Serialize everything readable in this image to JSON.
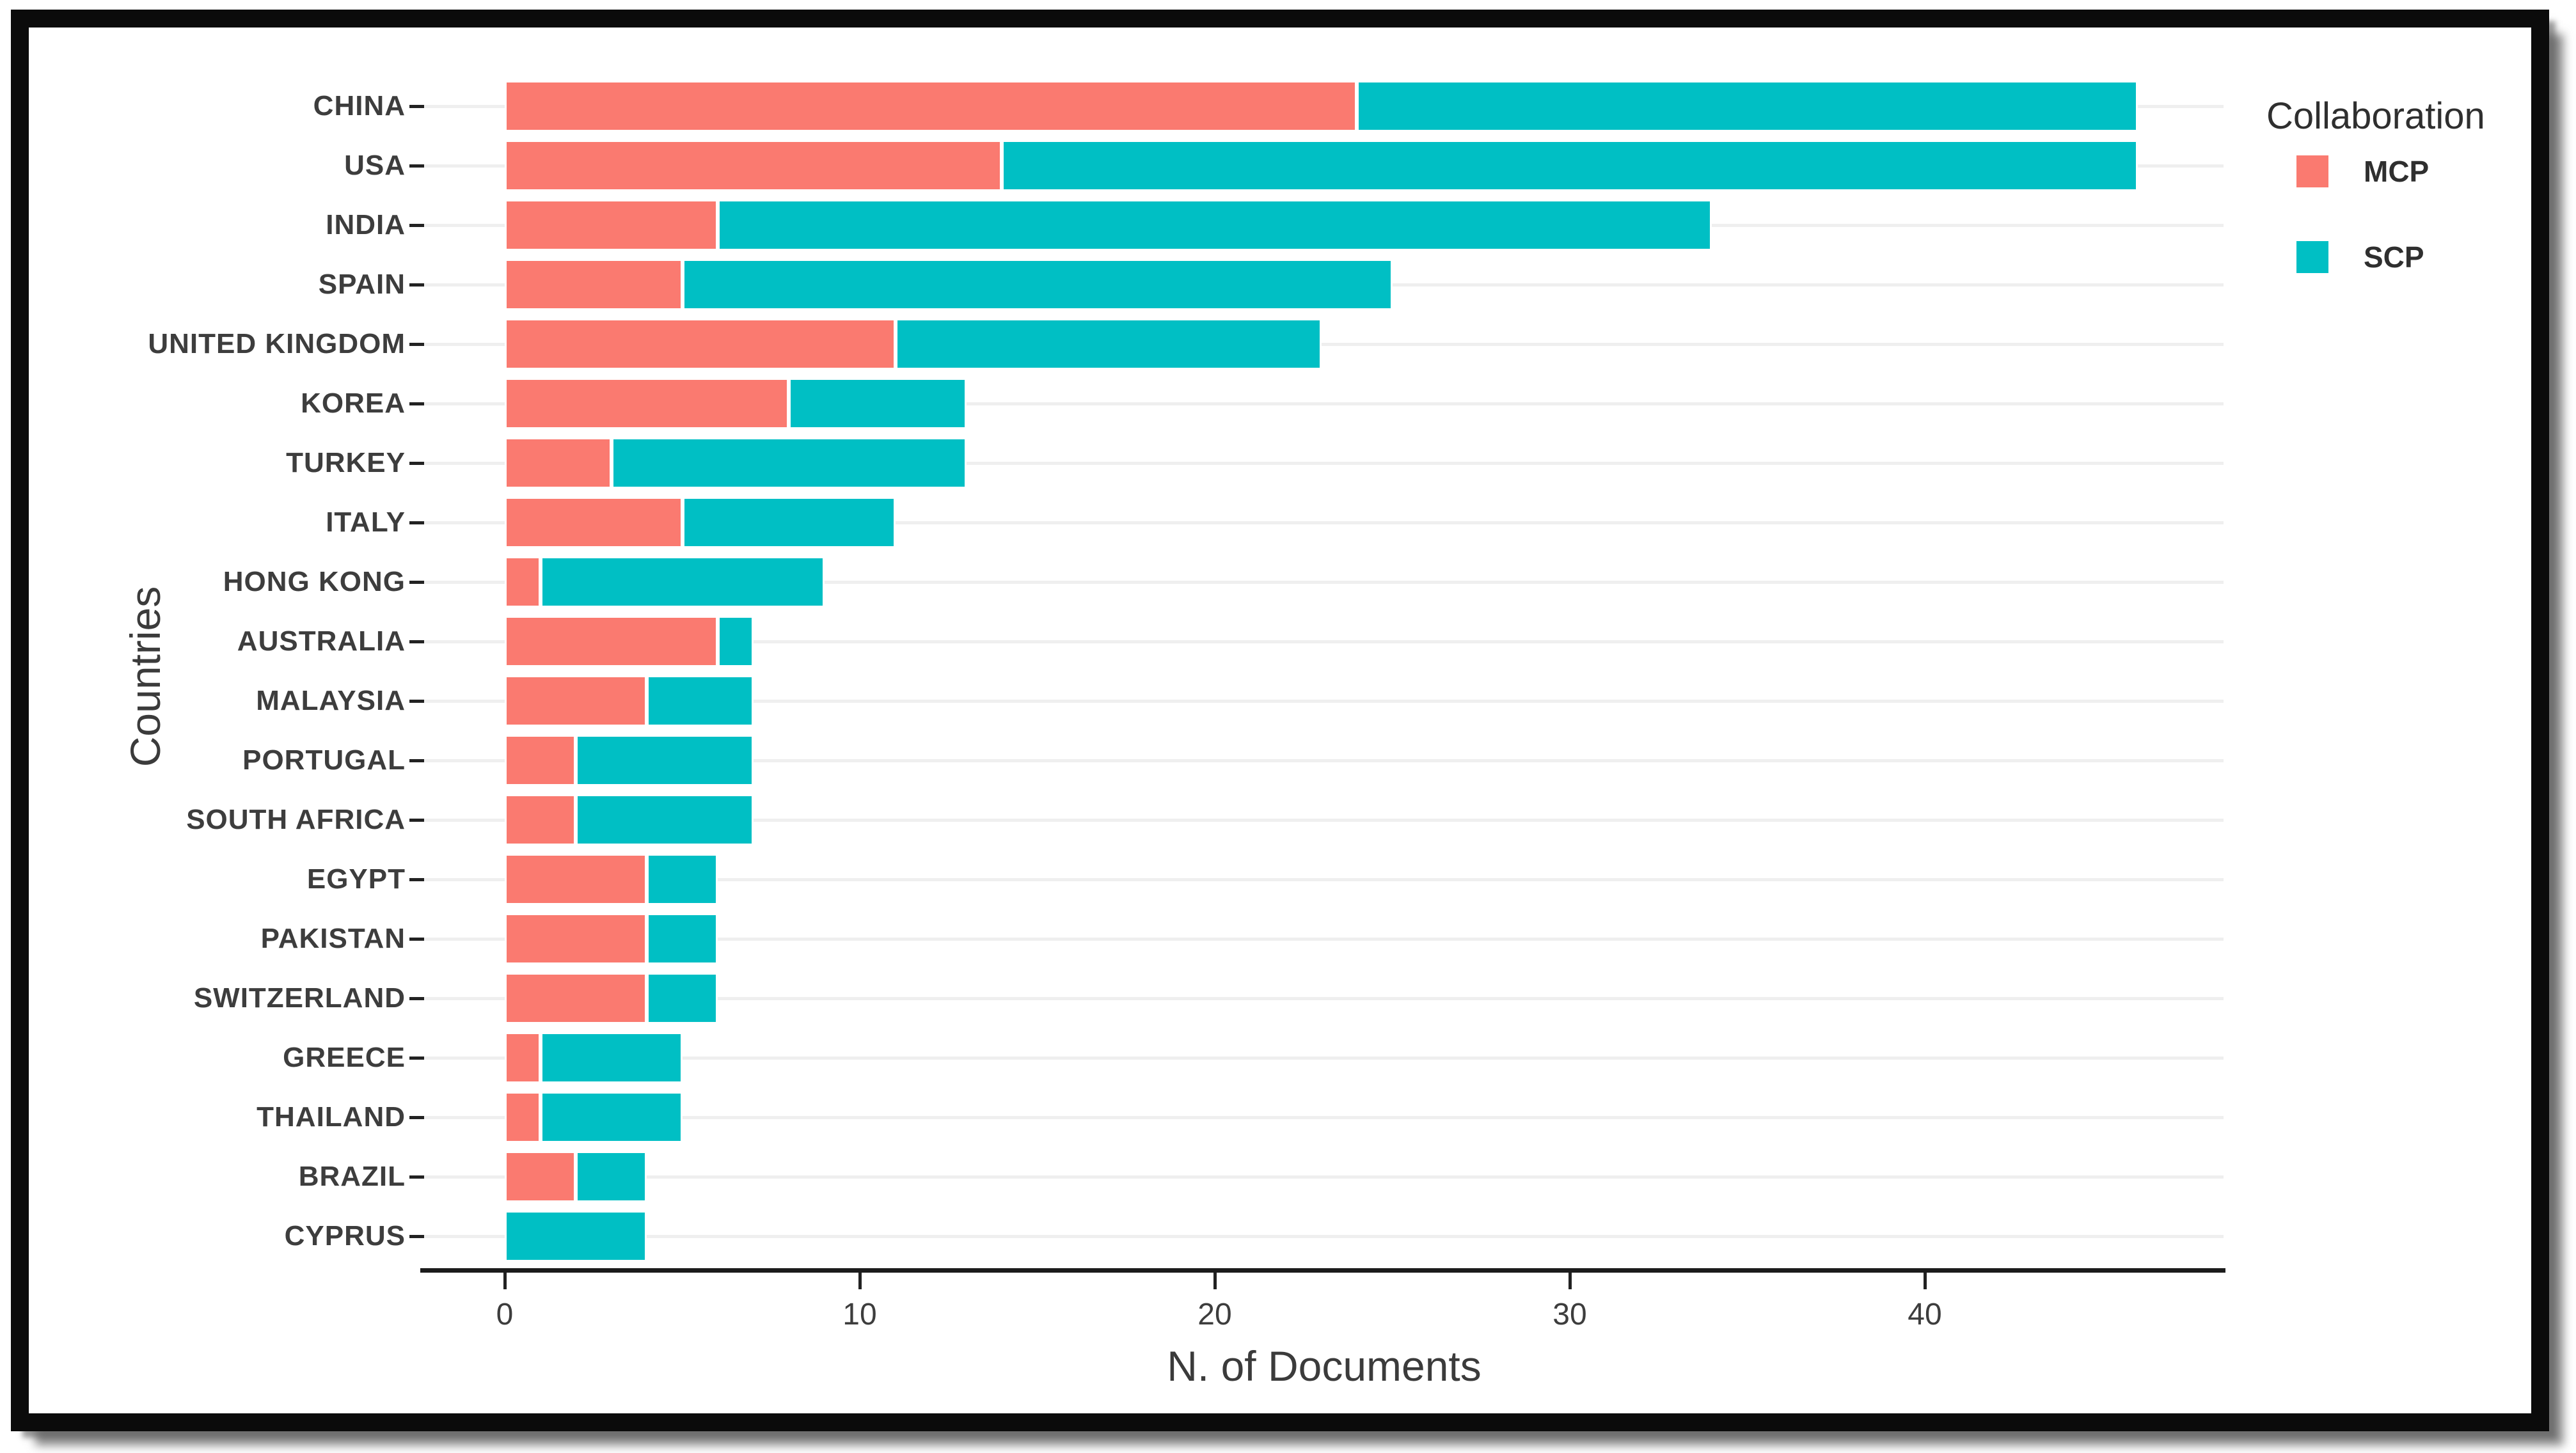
{
  "chart_data": {
    "type": "bar",
    "orientation": "horizontal",
    "stacked": true,
    "xlabel": "N. of Documents",
    "ylabel": "Countries",
    "categories": [
      "CHINA",
      "USA",
      "INDIA",
      "SPAIN",
      "UNITED KINGDOM",
      "KOREA",
      "TURKEY",
      "ITALY",
      "HONG KONG",
      "AUSTRALIA",
      "MALAYSIA",
      "PORTUGAL",
      "SOUTH AFRICA",
      "EGYPT",
      "PAKISTAN",
      "SWITZERLAND",
      "GREECE",
      "THAILAND",
      "BRAZIL",
      "CYPRUS"
    ],
    "series": [
      {
        "name": "MCP",
        "color": "#FA7A70",
        "values": [
          24,
          14,
          6,
          5,
          11,
          8,
          3,
          5,
          1,
          6,
          4,
          2,
          2,
          4,
          4,
          4,
          1,
          1,
          2,
          0
        ]
      },
      {
        "name": "SCP",
        "color": "#00BFC4",
        "values": [
          22,
          32,
          28,
          20,
          12,
          5,
          10,
          6,
          8,
          1,
          3,
          5,
          5,
          2,
          2,
          2,
          4,
          4,
          2,
          4
        ]
      }
    ],
    "totals": [
      46,
      46,
      34,
      25,
      23,
      13,
      13,
      11,
      9,
      7,
      7,
      7,
      7,
      6,
      6,
      6,
      5,
      5,
      4,
      4
    ],
    "xticks": [
      0,
      10,
      20,
      30,
      40
    ],
    "xlim": [
      0,
      48.5
    ],
    "grid": "horizontal",
    "legend": {
      "title": "Collaboration",
      "position": "right-top",
      "entries": [
        {
          "label": "MCP",
          "color": "#FA7A70"
        },
        {
          "label": "SCP",
          "color": "#00BFC4"
        }
      ]
    }
  },
  "colors": {
    "mcp": "#FA7A70",
    "scp": "#00BFC4",
    "grid": "#efefef",
    "axis": "#1c1c1c",
    "text": "#3d3d3d",
    "frame": "#0b0b0b"
  }
}
